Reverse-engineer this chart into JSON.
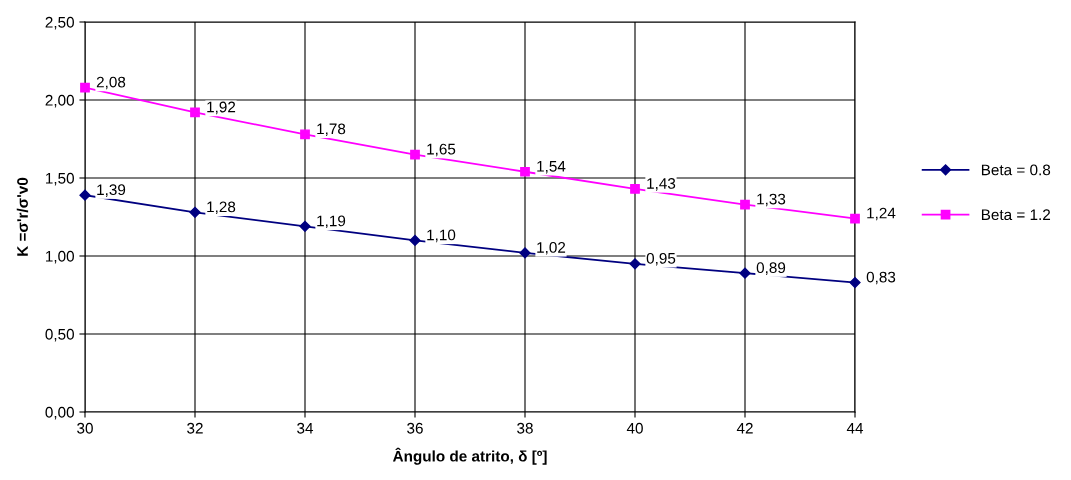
{
  "chart_data": {
    "type": "line",
    "xlabel": "Ângulo de atrito, δ [º]",
    "ylabel": "K =σ'r/σ'v0",
    "x": [
      30,
      32,
      34,
      36,
      38,
      40,
      42,
      44
    ],
    "series": [
      {
        "name": "Beta = 0.8",
        "color": "#000080",
        "marker": "diamond",
        "values": [
          1.39,
          1.28,
          1.19,
          1.1,
          1.02,
          0.95,
          0.89,
          0.83
        ],
        "value_labels": [
          "1,39",
          "1,28",
          "1,19",
          "1,10",
          "1,02",
          "0,95",
          "0,89",
          "0,83"
        ]
      },
      {
        "name": "Beta = 1.2",
        "color": "#ff00ff",
        "marker": "square",
        "values": [
          2.08,
          1.92,
          1.78,
          1.65,
          1.54,
          1.43,
          1.33,
          1.24
        ],
        "value_labels": [
          "2,08",
          "1,92",
          "1,78",
          "1,65",
          "1,54",
          "1,43",
          "1,33",
          "1,24"
        ]
      }
    ],
    "xlim": [
      30,
      44
    ],
    "xticks": [
      30,
      32,
      34,
      36,
      38,
      40,
      42,
      44
    ],
    "ylim": [
      0,
      2.5
    ],
    "yticks": [
      {
        "value": 0,
        "label": "0,00"
      },
      {
        "value": 0.5,
        "label": "0,50"
      },
      {
        "value": 1.0,
        "label": "1,00"
      },
      {
        "value": 1.5,
        "label": "1,50"
      },
      {
        "value": 2.0,
        "label": "2,00"
      },
      {
        "value": 2.5,
        "label": "2,50"
      }
    ],
    "grid": true,
    "legend": "right",
    "line_style": "solid"
  }
}
